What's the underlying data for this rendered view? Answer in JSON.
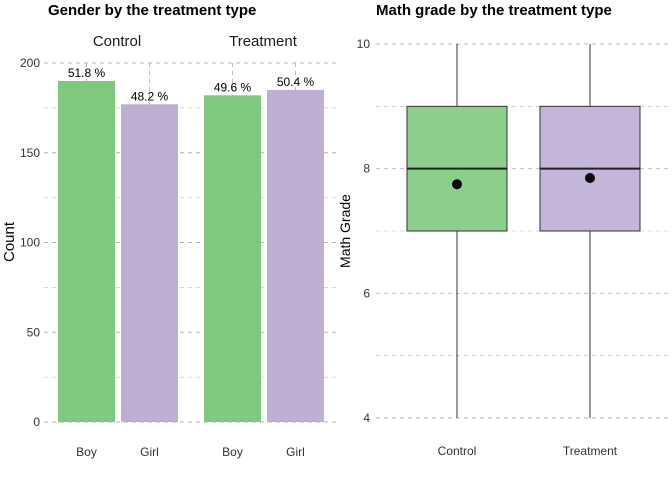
{
  "chart_data": [
    {
      "type": "bar",
      "title": "Gender by the treatment type",
      "xlabel": "",
      "ylabel": "Count",
      "ylim": [
        0,
        200
      ],
      "yticks": [
        0,
        50,
        100,
        150,
        200
      ],
      "grid": true,
      "facets": [
        {
          "name": "Control",
          "categories": [
            "Boy",
            "Girl"
          ],
          "values": [
            190,
            177
          ],
          "labels": [
            "51.8 %",
            "48.2 %"
          ]
        },
        {
          "name": "Treatment",
          "categories": [
            "Boy",
            "Girl"
          ],
          "values": [
            182,
            185
          ],
          "labels": [
            "49.6 %",
            "50.4 %"
          ]
        }
      ],
      "colors": {
        "Boy": "#7fc97f",
        "Girl": "#beaed4"
      }
    },
    {
      "type": "box",
      "title": "Math grade by the treatment type",
      "xlabel": "",
      "ylabel": "Math Grade",
      "ylim": [
        4,
        10
      ],
      "yticks": [
        4,
        6,
        8,
        10
      ],
      "grid": true,
      "categories": [
        "Control",
        "Treatment"
      ],
      "boxes": [
        {
          "min": 4,
          "q1": 7,
          "median": 8,
          "q3": 9,
          "max": 10,
          "mean": 7.75,
          "color": "#7fc97f"
        },
        {
          "min": 4,
          "q1": 7,
          "median": 8,
          "q3": 9,
          "max": 10,
          "mean": 7.85,
          "color": "#beaed4"
        }
      ]
    }
  ]
}
